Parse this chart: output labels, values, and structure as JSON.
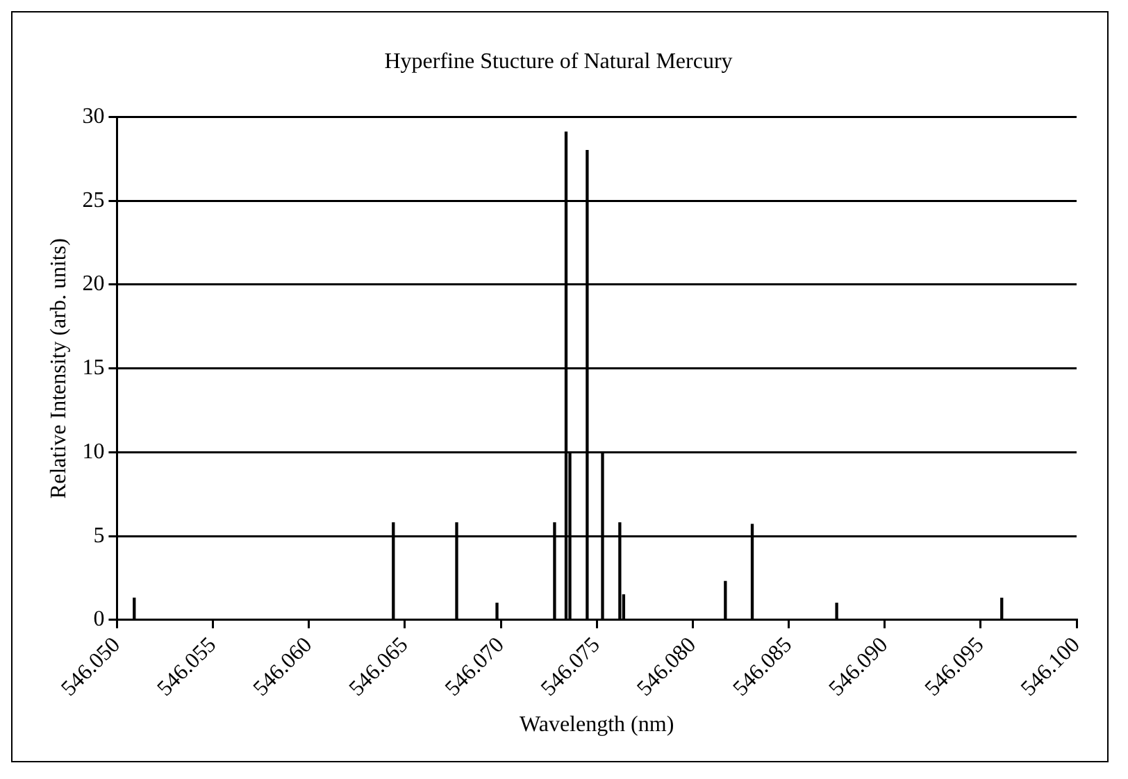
{
  "chart_data": {
    "type": "bar",
    "title": "Hyperfine Stucture of Natural Mercury",
    "xlabel": "Wavelength (nm)",
    "ylabel": "Relative Intensity (arb. units)",
    "x": [
      546.0509,
      546.0644,
      546.0677,
      546.0698,
      546.0728,
      546.0734,
      546.0736,
      546.0745,
      546.0753,
      546.0762,
      546.0764,
      546.0817,
      546.0831,
      546.0875,
      546.0961
    ],
    "values": [
      1.3,
      5.8,
      5.8,
      1.0,
      5.8,
      29.1,
      10,
      28,
      10,
      5.8,
      1.5,
      2.3,
      5.7,
      1.0,
      1.3
    ],
    "color": "#000000",
    "xlim": [
      546.05,
      546.1
    ],
    "xticks": [
      {
        "value": 546.05,
        "label": "546.050"
      },
      {
        "value": 546.055,
        "label": "546.055"
      },
      {
        "value": 546.06,
        "label": "546.060"
      },
      {
        "value": 546.065,
        "label": "546.065"
      },
      {
        "value": 546.07,
        "label": "546.070"
      },
      {
        "value": 546.075,
        "label": "546.075"
      },
      {
        "value": 546.08,
        "label": "546.080"
      },
      {
        "value": 546.085,
        "label": "546.085"
      },
      {
        "value": 546.09,
        "label": "546.090"
      },
      {
        "value": 546.095,
        "label": "546.095"
      },
      {
        "value": 546.1,
        "label": "546.100"
      }
    ],
    "ylim": [
      0,
      30
    ],
    "yticks": [
      0,
      5,
      10,
      15,
      20,
      25,
      30
    ],
    "grid": "y"
  }
}
